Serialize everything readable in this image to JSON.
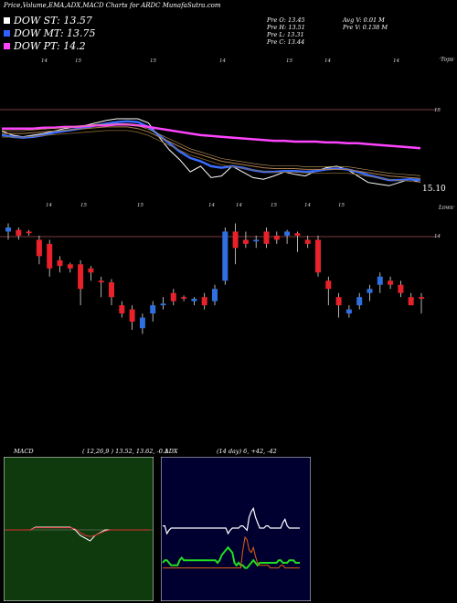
{
  "header": {
    "title": "Price,Volume,EMA,ADX,MACD Charts for ARDC MunafaSutra.com"
  },
  "legend": [
    {
      "label": "DOW ST: 13.57",
      "color": "#ffffff"
    },
    {
      "label": "DOW MT: 13.75",
      "color": "#3060ff"
    },
    {
      "label": "DOW PT: 14.2",
      "color": "#ff44ff"
    }
  ],
  "quote": {
    "open": "Pre  O: 13.45",
    "high": "Pre  H: 13.51",
    "low": "Pre  L: 13.31",
    "close": "Pre  C: 13.44",
    "avg_volume": "Avg V: 0.01 M",
    "prev_volume": "Pre  V: 0.138  M"
  },
  "panel_labels": {
    "ema_right": "Tops",
    "ema_price": "15.10",
    "level_15": "15",
    "candle_right": "Lows",
    "level_14": "14"
  },
  "ema_ticks": [
    "14",
    "15",
    "15",
    "14",
    "15",
    "14",
    "14"
  ],
  "candle_ticks": [
    "14",
    "15",
    "15",
    "14",
    "14",
    "15",
    "14",
    "15"
  ],
  "macd": {
    "label": "MACD",
    "params": "( 12,26,9 ) 13.52,  13.62,  -0.1"
  },
  "adx": {
    "label": "ADX",
    "params": "(14  day) 6,  +42,  -42"
  },
  "colors": {
    "up": "#2f6fe0",
    "down": "#e8212a",
    "ema_fast": "#ffffff",
    "ema_mid": "#3a6cff",
    "ema_pt": "#ff44ff",
    "macd_bg": "#0e3a0e",
    "adx_bg": "#000030"
  },
  "chart_data": [
    {
      "type": "line",
      "title": "",
      "series": [
        {
          "values": [
            15.05,
            15.0,
            14.98,
            15.0,
            15.02,
            15.05,
            15.08,
            15.1,
            15.12,
            15.15,
            15.18,
            15.2,
            15.2,
            15.2,
            15.15,
            14.98,
            14.82,
            14.7,
            14.55,
            14.62,
            14.48,
            14.5,
            14.62,
            14.55,
            14.48,
            14.46,
            14.5,
            14.55,
            14.52,
            14.5,
            14.56,
            14.6,
            14.62,
            14.58,
            14.5,
            14.42,
            14.4,
            14.38,
            14.42,
            14.46,
            14.42
          ]
        },
        {
          "name": "DOW ST: 13.57",
          "values": [
            15.0,
            14.98,
            14.97,
            14.98,
            15.0,
            15.03,
            15.05,
            15.07,
            15.09,
            15.12,
            15.14,
            15.16,
            15.17,
            15.16,
            15.1,
            15.0,
            14.9,
            14.8,
            14.72,
            14.68,
            14.62,
            14.6,
            14.62,
            14.6,
            14.57,
            14.55,
            14.55,
            14.56,
            14.56,
            14.55,
            14.56,
            14.58,
            14.59,
            14.58,
            14.55,
            14.51,
            14.48,
            14.45,
            14.45,
            14.46,
            14.45
          ]
        },
        {
          "name": "DOW MT: 13.75",
          "values": [
            15.02,
            15.02,
            15.02,
            15.03,
            15.04,
            15.05,
            15.06,
            15.07,
            15.08,
            15.09,
            15.1,
            15.1,
            15.1,
            15.08,
            15.04,
            14.98,
            14.92,
            14.86,
            14.8,
            14.76,
            14.72,
            14.68,
            14.66,
            14.64,
            14.62,
            14.6,
            14.59,
            14.59,
            14.59,
            14.58,
            14.58,
            14.58,
            14.58,
            14.58,
            14.56,
            14.54,
            14.52,
            14.5,
            14.49,
            14.48,
            14.47
          ]
        },
        {
          "name": "DOW PT: 14.2",
          "values": [
            15.08,
            15.08,
            15.08,
            15.08,
            15.09,
            15.09,
            15.1,
            15.1,
            15.11,
            15.12,
            15.12,
            15.13,
            15.13,
            15.12,
            15.1,
            15.08,
            15.06,
            15.04,
            15.02,
            15.0,
            14.99,
            14.98,
            14.97,
            14.96,
            14.95,
            14.94,
            14.93,
            14.93,
            14.92,
            14.92,
            14.92,
            14.91,
            14.91,
            14.9,
            14.9,
            14.89,
            14.88,
            14.87,
            14.86,
            14.85,
            14.84
          ]
        }
      ]
    },
    {
      "type": "candlestick",
      "title": "",
      "series": [
        {
          "values": [
            {
              "o": 14.0,
              "c": 14.05,
              "h": 14.1,
              "l": 13.9
            },
            {
              "o": 14.02,
              "c": 13.95,
              "h": 14.05,
              "l": 13.9
            },
            {
              "o": 14.0,
              "c": 13.98,
              "h": 14.02,
              "l": 13.95
            },
            {
              "o": 13.9,
              "c": 13.7,
              "h": 13.95,
              "l": 13.6
            },
            {
              "o": 13.85,
              "c": 13.55,
              "h": 13.9,
              "l": 13.45
            },
            {
              "o": 13.65,
              "c": 13.58,
              "h": 13.7,
              "l": 13.5
            },
            {
              "o": 13.6,
              "c": 13.55,
              "h": 13.62,
              "l": 13.5
            },
            {
              "o": 13.6,
              "c": 13.3,
              "h": 13.65,
              "l": 13.1
            },
            {
              "o": 13.55,
              "c": 13.5,
              "h": 13.58,
              "l": 13.4
            },
            {
              "o": 13.4,
              "c": 13.38,
              "h": 13.45,
              "l": 13.2
            },
            {
              "o": 13.38,
              "c": 13.2,
              "h": 13.42,
              "l": 13.1
            },
            {
              "o": 13.1,
              "c": 13.0,
              "h": 13.15,
              "l": 12.95
            },
            {
              "o": 13.05,
              "c": 12.9,
              "h": 13.1,
              "l": 12.8
            },
            {
              "o": 12.82,
              "c": 12.95,
              "h": 13.0,
              "l": 12.75
            },
            {
              "o": 13.0,
              "c": 13.1,
              "h": 13.15,
              "l": 12.9
            },
            {
              "o": 13.1,
              "c": 13.12,
              "h": 13.2,
              "l": 13.05
            },
            {
              "o": 13.25,
              "c": 13.15,
              "h": 13.3,
              "l": 13.1
            },
            {
              "o": 13.2,
              "c": 13.18,
              "h": 13.22,
              "l": 13.15
            },
            {
              "o": 13.15,
              "c": 13.18,
              "h": 13.2,
              "l": 13.1
            },
            {
              "o": 13.2,
              "c": 13.1,
              "h": 13.25,
              "l": 13.05
            },
            {
              "o": 13.15,
              "c": 13.3,
              "h": 13.35,
              "l": 13.1
            },
            {
              "o": 13.4,
              "c": 14.0,
              "h": 14.05,
              "l": 13.35
            },
            {
              "o": 14.0,
              "c": 13.8,
              "h": 14.1,
              "l": 13.6
            },
            {
              "o": 13.9,
              "c": 13.85,
              "h": 14.0,
              "l": 13.8
            },
            {
              "o": 13.88,
              "c": 13.9,
              "h": 13.95,
              "l": 13.8
            },
            {
              "o": 14.0,
              "c": 13.85,
              "h": 14.05,
              "l": 13.8
            },
            {
              "o": 13.95,
              "c": 13.9,
              "h": 14.0,
              "l": 13.85
            },
            {
              "o": 13.95,
              "c": 14.0,
              "h": 14.02,
              "l": 13.85
            },
            {
              "o": 13.98,
              "c": 13.95,
              "h": 14.0,
              "l": 13.75
            },
            {
              "o": 13.9,
              "c": 13.85,
              "h": 13.95,
              "l": 13.8
            },
            {
              "o": 13.9,
              "c": 13.5,
              "h": 13.95,
              "l": 13.45
            },
            {
              "o": 13.4,
              "c": 13.3,
              "h": 13.45,
              "l": 13.1
            },
            {
              "o": 13.2,
              "c": 13.1,
              "h": 13.25,
              "l": 12.95
            },
            {
              "o": 13.0,
              "c": 13.05,
              "h": 13.1,
              "l": 12.95
            },
            {
              "o": 13.1,
              "c": 13.2,
              "h": 13.25,
              "l": 13.05
            },
            {
              "o": 13.25,
              "c": 13.3,
              "h": 13.35,
              "l": 13.15
            },
            {
              "o": 13.35,
              "c": 13.45,
              "h": 13.5,
              "l": 13.25
            },
            {
              "o": 13.4,
              "c": 13.35,
              "h": 13.45,
              "l": 13.3
            },
            {
              "o": 13.35,
              "c": 13.25,
              "h": 13.4,
              "l": 13.2
            },
            {
              "o": 13.2,
              "c": 13.1,
              "h": 13.25,
              "l": 13.1
            },
            {
              "o": 13.2,
              "c": 13.18,
              "h": 13.25,
              "l": 13.0
            }
          ]
        }
      ]
    },
    {
      "type": "line",
      "title": "",
      "series": [
        {
          "values": [
            0,
            0,
            0,
            0,
            0,
            0,
            0.05,
            0.05,
            0.05,
            0.05,
            0.05,
            0.05,
            0.05,
            0.05,
            0.0,
            -0.1,
            -0.15,
            -0.2,
            -0.1,
            -0.05,
            0,
            0,
            0,
            0,
            0,
            0,
            0,
            0,
            0,
            0
          ]
        },
        {
          "values": [
            0,
            0,
            0,
            0,
            0,
            0,
            0.04,
            0.04,
            0.04,
            0.04,
            0.04,
            0.04,
            0.04,
            0.04,
            0.02,
            -0.05,
            -0.1,
            -0.12,
            -0.1,
            -0.06,
            -0.02,
            0,
            0,
            0,
            0,
            0,
            0,
            0,
            0,
            0
          ]
        }
      ]
    },
    {
      "type": "line",
      "title": "",
      "series": [
        {
          "values": [
            42,
            42,
            35,
            38,
            40,
            40,
            40,
            40,
            40,
            40,
            40,
            40,
            40,
            40,
            40,
            40,
            40,
            40,
            40,
            40,
            40,
            40,
            40,
            40,
            40,
            40,
            40,
            40,
            40,
            40,
            40,
            35,
            38,
            40,
            40,
            40,
            40,
            42,
            42,
            40,
            38,
            50,
            55,
            58,
            50,
            45,
            40,
            40,
            40,
            42,
            42,
            40,
            40,
            40,
            40,
            40,
            40,
            45,
            48,
            42,
            40,
            40,
            40,
            40,
            40,
            40
          ]
        },
        {
          "values": [
            10,
            12,
            12,
            10,
            8,
            8,
            8,
            8,
            12,
            14,
            12,
            12,
            12,
            12,
            12,
            12,
            12,
            12,
            12,
            12,
            12,
            12,
            12,
            12,
            12,
            12,
            10,
            12,
            16,
            18,
            20,
            22,
            20,
            18,
            10,
            8,
            10,
            8,
            8,
            6,
            6,
            8,
            10,
            12,
            10,
            8,
            10,
            10,
            10,
            10,
            10,
            10,
            10,
            10,
            10,
            12,
            12,
            10,
            10,
            10,
            12,
            12,
            12,
            10,
            10,
            10
          ]
        },
        {
          "values": [
            6,
            6,
            6,
            6,
            6,
            6,
            6,
            6,
            6,
            6,
            6,
            6,
            6,
            6,
            6,
            6,
            6,
            6,
            6,
            6,
            6,
            6,
            6,
            6,
            6,
            6,
            6,
            6,
            6,
            6,
            6,
            6,
            6,
            6,
            6,
            6,
            6,
            6,
            20,
            30,
            28,
            20,
            18,
            22,
            15,
            10,
            8,
            8,
            8,
            8,
            8,
            6,
            6,
            6,
            6,
            6,
            8,
            8,
            6,
            6,
            6,
            6,
            6,
            6,
            6,
            6
          ]
        }
      ]
    }
  ]
}
